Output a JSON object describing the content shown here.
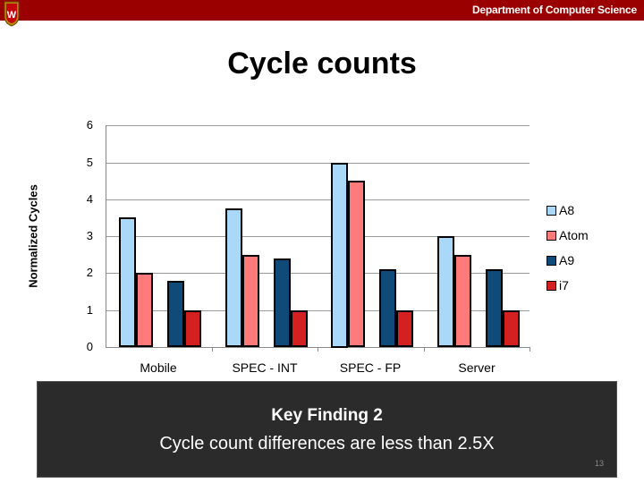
{
  "header": {
    "department": "Department of Computer Science",
    "logo": "uw-crest-icon",
    "bar_color": "#9b0000"
  },
  "slide": {
    "title": "Cycle counts",
    "page_number": "13"
  },
  "finding": {
    "title": "Key Finding 2",
    "text": "Cycle count differences are less than 2.5X"
  },
  "chart_data": {
    "type": "bar",
    "title": "",
    "xlabel": "",
    "ylabel": "Normalized Cycles",
    "ylim": [
      0,
      6
    ],
    "yticks": [
      0,
      1,
      2,
      3,
      4,
      5,
      6
    ],
    "grid": true,
    "legend_position": "right",
    "categories": [
      "Mobile",
      "SPEC - INT",
      "SPEC - FP",
      "Server"
    ],
    "series": [
      {
        "name": "A8",
        "color": "#a9d8f8",
        "values": [
          3.5,
          3.75,
          5.0,
          3.0
        ]
      },
      {
        "name": "Atom",
        "color": "#ff7b7b",
        "values": [
          2.0,
          2.5,
          4.5,
          2.5
        ]
      },
      {
        "name": "A9",
        "color": "#0f4a78",
        "values": [
          1.8,
          2.4,
          2.1,
          2.1
        ]
      },
      {
        "name": "i7",
        "color": "#d42020",
        "values": [
          1.0,
          1.0,
          1.0,
          1.0
        ]
      }
    ]
  }
}
